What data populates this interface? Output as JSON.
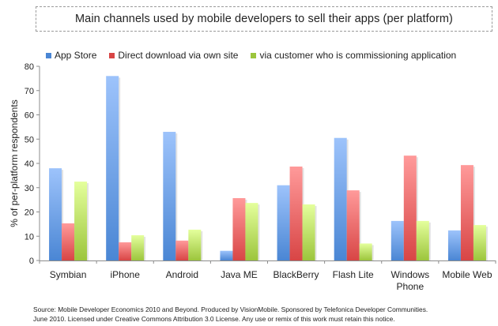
{
  "chart_data": {
    "type": "bar",
    "title": "Main channels used by mobile developers to sell their apps (per platform)",
    "xlabel": "",
    "ylabel": "% of per-platform respondents",
    "ylim": [
      0,
      80
    ],
    "yticks": [
      0,
      10,
      20,
      30,
      40,
      50,
      60,
      70,
      80
    ],
    "grid": false,
    "legend_position": "top",
    "categories": [
      "Symbian",
      "iPhone",
      "Android",
      "Java ME",
      "BlackBerry",
      "Flash Lite",
      "Windows Phone",
      "Mobile Web"
    ],
    "category_label_lines": [
      [
        "Symbian"
      ],
      [
        "iPhone"
      ],
      [
        "Android"
      ],
      [
        "Java ME"
      ],
      [
        "BlackBerry"
      ],
      [
        "Flash Lite"
      ],
      [
        "Windows",
        "Phone"
      ],
      [
        "Mobile Web"
      ]
    ],
    "series": [
      {
        "name": "App Store",
        "color": "#4a86d4",
        "color_light": "#9dc3fb",
        "values": [
          38,
          76,
          53,
          4,
          31,
          50.5,
          16.3,
          12.4
        ]
      },
      {
        "name": "Direct download via own site",
        "color": "#d84545",
        "color_light": "#ff9a9a",
        "values": [
          15.3,
          7.5,
          8.2,
          25.7,
          38.7,
          28.9,
          43.2,
          39.3
        ]
      },
      {
        "name": "via customer who is commissioning application",
        "color": "#9cc53c",
        "color_light": "#e4ff9c",
        "values": [
          32.5,
          10.4,
          12.7,
          23.7,
          23.1,
          7,
          16.3,
          14.6
        ]
      }
    ]
  },
  "footer": {
    "source_line1": "Source: Mobile Developer Economics 2010 and Beyond. Produced by VisionMobile. Sponsored by Telefonica Developer Communities.",
    "source_line2": "June 2010. Licensed under Creative Commons Attribution 3.0 License. Any use or remix of this work must retain this notice."
  }
}
